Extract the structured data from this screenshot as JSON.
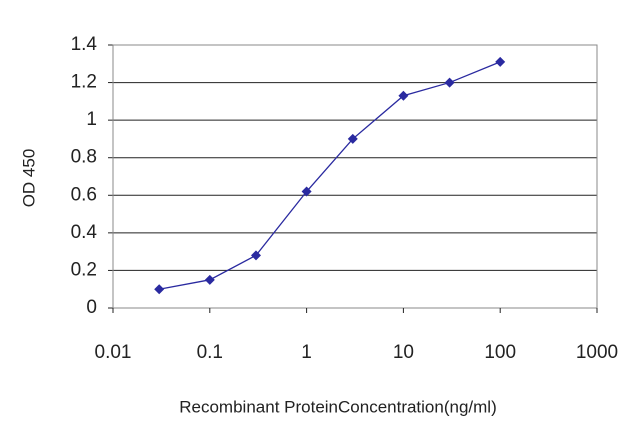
{
  "chart_data": {
    "type": "line",
    "xlabel": "Recombinant ProteinConcentration(ng/ml)",
    "ylabel": "OD 450",
    "x": [
      0.03,
      0.1,
      0.3,
      1,
      3,
      10,
      30,
      100
    ],
    "values": [
      0.1,
      0.15,
      0.28,
      0.62,
      0.9,
      1.13,
      1.2,
      1.31
    ],
    "color": "#2a2aa0",
    "xscale": "log",
    "xlim": [
      0.01,
      1000
    ],
    "xticks": [
      0.01,
      0.1,
      1,
      10,
      100,
      1000
    ],
    "ylim": [
      0,
      1.4
    ],
    "yticks": [
      0,
      0.2,
      0.4,
      0.6,
      0.8,
      1,
      1.2,
      1.4
    ],
    "grid": true
  }
}
